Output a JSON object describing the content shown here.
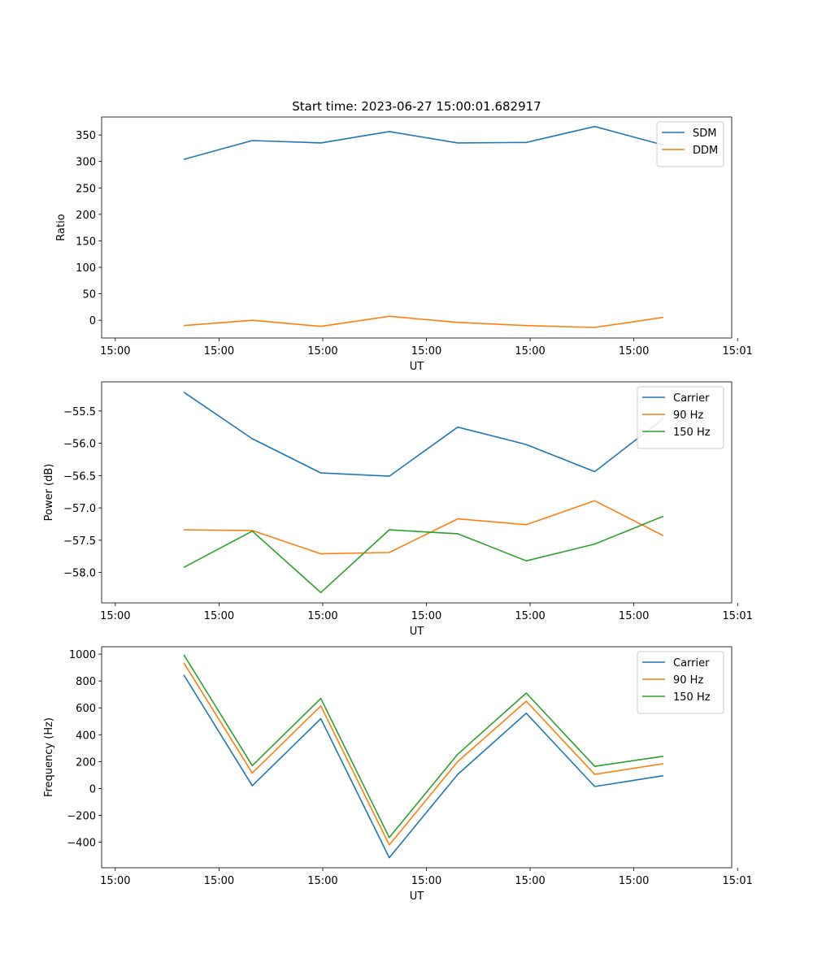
{
  "figure_title": "Start time: 2023-06-27 15:00:01.682917",
  "chart_data": [
    {
      "type": "line",
      "xlabel": "UT",
      "ylabel": "Ratio",
      "x": [
        0.7,
        1.4,
        2.1,
        2.8,
        3.5,
        4.2,
        4.9,
        5.6
      ],
      "xlim": [
        -0.14,
        6.3
      ],
      "ylim": [
        -33.5,
        384
      ],
      "xticks": [
        0,
        1.06,
        2.12,
        3.18,
        4.24,
        5.3,
        6.36
      ],
      "xtick_labels": [
        "15:00",
        "15:00",
        "15:00",
        "15:00",
        "15:00",
        "15:00",
        "15:01"
      ],
      "yticks": [
        0,
        50,
        100,
        150,
        200,
        250,
        300,
        350
      ],
      "ytick_labels": [
        "0",
        "50",
        "100",
        "150",
        "200",
        "250",
        "300",
        "350"
      ],
      "legend": "top-right",
      "series": [
        {
          "name": "SDM",
          "color": "#1f77b4",
          "values": [
            304,
            339.5,
            335,
            356.5,
            335,
            336,
            366,
            331
          ]
        },
        {
          "name": "DDM",
          "color": "#ff7f0e",
          "values": [
            -10,
            0,
            -11.5,
            7.5,
            -4,
            -10,
            -13.5,
            5.5
          ]
        }
      ]
    },
    {
      "type": "line",
      "xlabel": "UT",
      "ylabel": "Power (dB)",
      "x": [
        0.7,
        1.4,
        2.1,
        2.8,
        3.5,
        4.2,
        4.9,
        5.6
      ],
      "xlim": [
        -0.14,
        6.3
      ],
      "ylim": [
        -58.47,
        -55.05
      ],
      "xticks": [
        0,
        1.06,
        2.12,
        3.18,
        4.24,
        5.3,
        6.36
      ],
      "xtick_labels": [
        "15:00",
        "15:00",
        "15:00",
        "15:00",
        "15:00",
        "15:00",
        "15:01"
      ],
      "yticks": [
        -58.0,
        -57.5,
        -57.0,
        -56.5,
        -56.0,
        -55.5
      ],
      "ytick_labels": [
        "−58.0",
        "−57.5",
        "−57.0",
        "−56.5",
        "−56.0",
        "−55.5"
      ],
      "legend": "top-right",
      "series": [
        {
          "name": "Carrier",
          "color": "#1f77b4",
          "values": [
            -55.21,
            -55.93,
            -56.46,
            -56.51,
            -55.75,
            -56.02,
            -56.44,
            -55.62
          ]
        },
        {
          "name": "90 Hz",
          "color": "#ff7f0e",
          "values": [
            -57.34,
            -57.35,
            -57.71,
            -57.69,
            -57.17,
            -57.26,
            -56.89,
            -57.43
          ]
        },
        {
          "name": "150 Hz",
          "color": "#2ca02c",
          "values": [
            -57.92,
            -57.36,
            -58.31,
            -57.34,
            -57.4,
            -57.82,
            -57.56,
            -57.13
          ]
        }
      ]
    },
    {
      "type": "line",
      "xlabel": "UT",
      "ylabel": "Frequency (Hz)",
      "x": [
        0.7,
        1.4,
        2.1,
        2.8,
        3.5,
        4.2,
        4.9,
        5.6
      ],
      "xlim": [
        -0.14,
        6.3
      ],
      "ylim": [
        -590,
        1055
      ],
      "xticks": [
        0,
        1.06,
        2.12,
        3.18,
        4.24,
        5.3,
        6.36
      ],
      "xtick_labels": [
        "15:00",
        "15:00",
        "15:00",
        "15:00",
        "15:00",
        "15:00",
        "15:01"
      ],
      "yticks": [
        -400,
        -200,
        0,
        200,
        400,
        600,
        800,
        1000
      ],
      "ytick_labels": [
        "−400",
        "−200",
        "0",
        "200",
        "400",
        "600",
        "800",
        "1000"
      ],
      "legend": "top-right",
      "series": [
        {
          "name": "Carrier",
          "color": "#1f77b4",
          "values": [
            845,
            20,
            520,
            -515,
            105,
            560,
            15,
            95
          ]
        },
        {
          "name": "90 Hz",
          "color": "#ff7f0e",
          "values": [
            935,
            115,
            615,
            -420,
            200,
            650,
            105,
            185
          ]
        },
        {
          "name": "150 Hz",
          "color": "#2ca02c",
          "values": [
            995,
            170,
            670,
            -365,
            255,
            710,
            165,
            240
          ]
        }
      ]
    }
  ]
}
